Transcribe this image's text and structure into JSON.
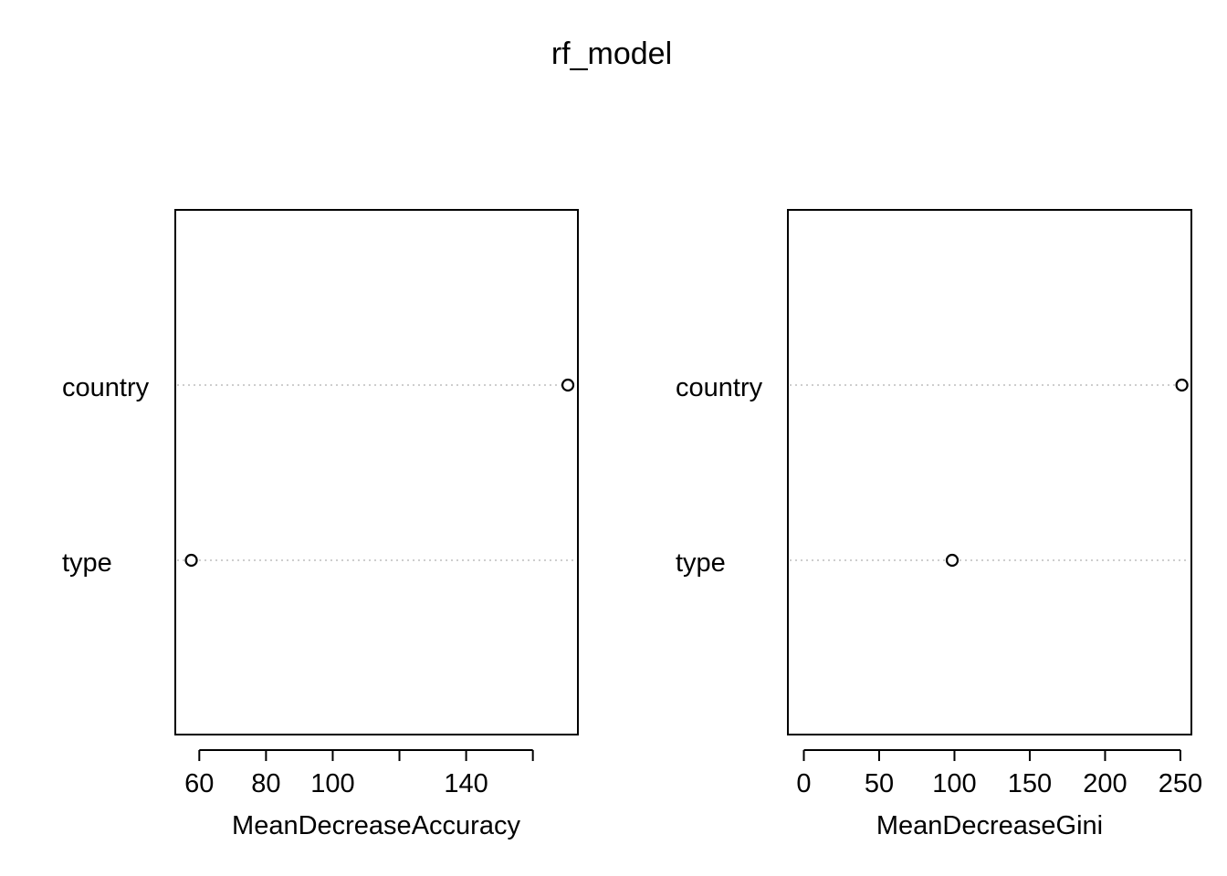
{
  "title": "rf_model",
  "chart_data": [
    {
      "type": "scatter",
      "style": "dotchart",
      "xlabel": "MeanDecreaseAccuracy",
      "categories": [
        "country",
        "type"
      ],
      "values": [
        170.5,
        57.6
      ],
      "xlim": [
        52.8,
        173.5
      ],
      "xticks": [
        60,
        80,
        100,
        120,
        140,
        160
      ],
      "xtick_labels": [
        "60",
        "80",
        "100",
        "",
        "140",
        ""
      ]
    },
    {
      "type": "scatter",
      "style": "dotchart",
      "xlabel": "MeanDecreaseGini",
      "categories": [
        "country",
        "type"
      ],
      "values": [
        251,
        98.5
      ],
      "xlim": [
        -10.6,
        257.3
      ],
      "xticks": [
        0,
        50,
        100,
        150,
        200,
        250
      ],
      "xtick_labels": [
        "0",
        "50",
        "100",
        "150",
        "200",
        "250"
      ]
    }
  ]
}
